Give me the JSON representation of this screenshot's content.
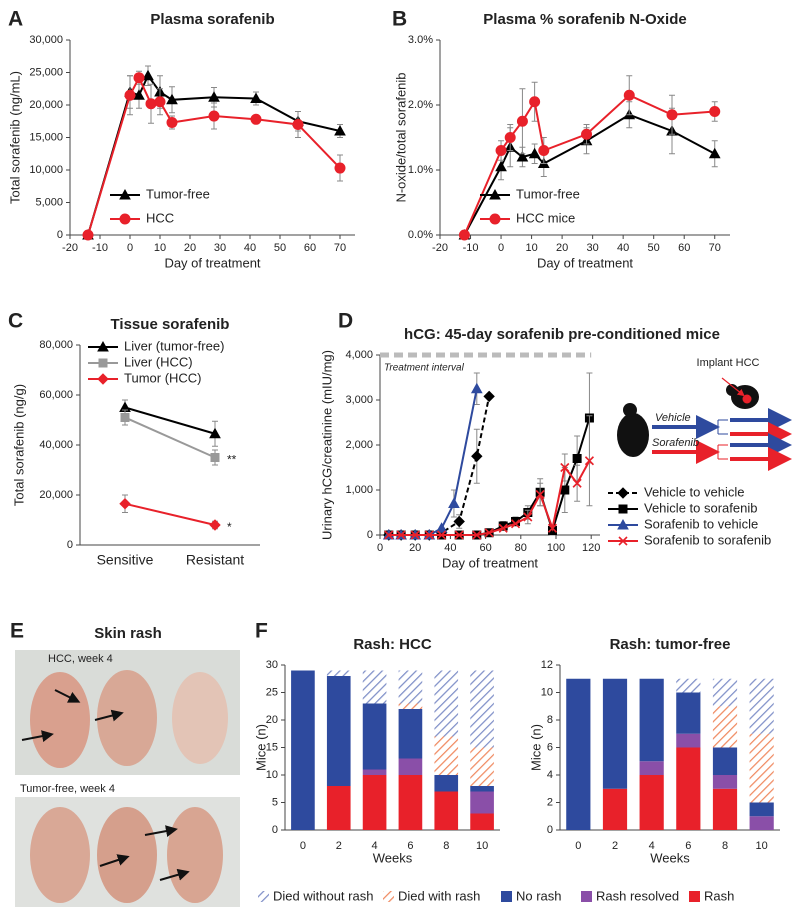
{
  "chart_data": [
    {
      "type": "line",
      "panel": "A",
      "title": "Plasma sorafenib",
      "x_label": "Day of treatment",
      "y_label": "Total sorafenib (ng/mL)",
      "xlim": [
        -20,
        75
      ],
      "xticks": [
        -20,
        -10,
        0,
        10,
        20,
        30,
        40,
        50,
        60,
        70
      ],
      "ylim": [
        0,
        30000
      ],
      "yticks": [
        0,
        {
          "value": 5000,
          "label": "5,000"
        },
        {
          "value": 10000,
          "label": "10,000"
        },
        {
          "value": 15000,
          "label": "15,000"
        },
        {
          "value": 20000,
          "label": "20,000"
        },
        {
          "value": 25000,
          "label": "25,000"
        },
        {
          "value": 30000,
          "label": "30,000"
        }
      ],
      "legend": "lower left",
      "series": [
        {
          "name": "Tumor-free",
          "color": "#000000",
          "marker": "triangle",
          "x": [
            -14,
            0,
            3,
            6,
            10,
            14,
            28,
            42,
            56,
            70
          ],
          "values": [
            0,
            22000,
            21500,
            24500,
            22000,
            20800,
            21200,
            21000,
            17500,
            16000
          ],
          "errors": [
            null,
            2500,
            2000,
            1500,
            2500,
            2000,
            1500,
            1000,
            1500,
            1000
          ]
        },
        {
          "name": "HCC",
          "color": "#e8212a",
          "marker": "circle",
          "x": [
            -14,
            0,
            3,
            7,
            10,
            14,
            28,
            42,
            56,
            70
          ],
          "values": [
            0,
            21500,
            24200,
            20200,
            20500,
            17300,
            18300,
            17800,
            17000,
            10300
          ],
          "errors": [
            null,
            3000,
            1000,
            3000,
            2000,
            1000,
            2000,
            500,
            2000,
            2000
          ]
        }
      ]
    },
    {
      "type": "line",
      "panel": "B",
      "title": "Plasma % sorafenib N-Oxide",
      "x_label": "Day of treatment",
      "y_label": "N-oxide/total sorafenib",
      "xlim": [
        -20,
        75
      ],
      "xticks": [
        -20,
        -10,
        0,
        10,
        20,
        30,
        40,
        50,
        60,
        70
      ],
      "ylim": [
        0,
        3
      ],
      "yticks": [
        {
          "value": 0,
          "label": "0.0%"
        },
        {
          "value": 1,
          "label": "1.0%"
        },
        {
          "value": 2,
          "label": "2.0%"
        },
        {
          "value": 3,
          "label": "3.0%"
        }
      ],
      "legend": "lower left",
      "series": [
        {
          "name": "Tumor-free",
          "color": "#000000",
          "marker": "triangle",
          "x": [
            -12,
            0,
            3,
            7,
            11,
            14,
            28,
            42,
            56,
            70
          ],
          "values": [
            0,
            1.05,
            1.35,
            1.2,
            1.25,
            1.1,
            1.45,
            1.85,
            1.6,
            1.25
          ],
          "errors": [
            null,
            0.2,
            0.3,
            0.15,
            0.15,
            0.2,
            0.2,
            0.2,
            0.35,
            0.2
          ]
        },
        {
          "name": "HCC mice",
          "color": "#e8212a",
          "marker": "circle",
          "x": [
            -12,
            0,
            3,
            7,
            11,
            14,
            28,
            42,
            56,
            70
          ],
          "values": [
            0,
            1.3,
            1.5,
            1.75,
            2.05,
            1.3,
            1.55,
            2.15,
            1.85,
            1.9
          ],
          "errors": [
            null,
            0.15,
            0.2,
            0.5,
            0.3,
            0.2,
            0.15,
            0.3,
            0.3,
            0.15
          ]
        }
      ]
    },
    {
      "type": "line",
      "panel": "C",
      "title": "Tissue sorafenib",
      "y_label": "Total sorafenib (ng/g)",
      "categories": [
        "Sensitive",
        "Resistant"
      ],
      "ylim": [
        0,
        80000
      ],
      "yticks": [
        0,
        {
          "value": 20000,
          "label": "20,000"
        },
        {
          "value": 40000,
          "label": "40,000"
        },
        {
          "value": 60000,
          "label": "60,000"
        },
        {
          "value": 80000,
          "label": "80,000"
        }
      ],
      "legend": "upper left",
      "series": [
        {
          "name": "Liver (tumor-free)",
          "color": "#000000",
          "marker": "triangle",
          "values": [
            55000,
            44500
          ],
          "errors": [
            3000,
            5000
          ]
        },
        {
          "name": "Liver (HCC)",
          "color": "#999999",
          "marker": "square",
          "values": [
            51000,
            35000
          ],
          "errors": [
            3000,
            3000
          ],
          "annotation": "**"
        },
        {
          "name": "Tumor (HCC)",
          "color": "#e8212a",
          "marker": "diamond",
          "values": [
            16500,
            8000
          ],
          "errors": [
            3500,
            1500
          ],
          "annotation": "*"
        }
      ]
    },
    {
      "type": "line",
      "panel": "D",
      "title": "hCG: 45-day sorafenib pre-conditioned mice",
      "x_label": "Day of treatment",
      "y_label": "Urinary hCG/creatinine (mIU/mg)",
      "xlim": [
        0,
        125
      ],
      "xticks": [
        0,
        20,
        40,
        60,
        80,
        100,
        120
      ],
      "ylim": [
        0,
        4000
      ],
      "yticks": [
        0,
        {
          "value": 1000,
          "label": "1,000"
        },
        {
          "value": 2000,
          "label": "2,000"
        },
        {
          "value": 3000,
          "label": "3,000"
        },
        {
          "value": 4000,
          "label": "4,000"
        }
      ],
      "interval": {
        "label": "Treatment interval",
        "x": [
          0,
          120
        ]
      },
      "diagram": {
        "implant": "Implant HCC",
        "vehicle": "Vehicle",
        "sorafenib": "Sorafenib"
      },
      "legend": "outside lower right",
      "series": [
        {
          "name": "Vehicle to vehicle",
          "color": "#000000",
          "marker": "diamond",
          "dashed": true,
          "x": [
            5,
            12,
            20,
            28,
            35,
            45,
            55,
            62
          ],
          "values": [
            0,
            0,
            0,
            0,
            50,
            300,
            1750,
            3080
          ],
          "errors": [
            null,
            null,
            null,
            null,
            null,
            150,
            600,
            null
          ]
        },
        {
          "name": "Vehicle to sorafenib",
          "color": "#000000",
          "marker": "square",
          "x": [
            5,
            12,
            20,
            28,
            35,
            45,
            55,
            62,
            70,
            77,
            84,
            91,
            98,
            105,
            112,
            119
          ],
          "values": [
            0,
            0,
            0,
            0,
            0,
            0,
            0,
            50,
            200,
            300,
            500,
            950,
            100,
            1000,
            1700,
            2600
          ],
          "errors": [
            null,
            null,
            null,
            null,
            null,
            null,
            null,
            null,
            100,
            100,
            150,
            300,
            100,
            500,
            500,
            1000
          ]
        },
        {
          "name": "Sorafenib to vehicle",
          "color": "#2e4a9e",
          "marker": "triangle",
          "x": [
            5,
            12,
            20,
            28,
            35,
            42,
            55
          ],
          "values": [
            0,
            0,
            0,
            0,
            150,
            700,
            3250
          ],
          "errors": [
            null,
            null,
            null,
            null,
            null,
            300,
            350
          ]
        },
        {
          "name": "Sorafenib to sorafenib",
          "color": "#e8212a",
          "marker": "x",
          "x": [
            5,
            12,
            20,
            28,
            35,
            45,
            55,
            62,
            70,
            77,
            84,
            91,
            98,
            105,
            112,
            119
          ],
          "values": [
            0,
            0,
            0,
            0,
            0,
            0,
            0,
            50,
            150,
            250,
            400,
            900,
            150,
            1500,
            1150,
            1650
          ],
          "errors": [
            null,
            null,
            null,
            null,
            null,
            null,
            null,
            null,
            null,
            null,
            150,
            250,
            null,
            300,
            400,
            1000
          ]
        }
      ]
    },
    {
      "type": "stacked_bar",
      "panel": "F",
      "title": "Rash: HCC",
      "x_label": "Weeks",
      "y_label": "Mice (n)",
      "categories": [
        "0",
        "2",
        "4",
        "6",
        "8",
        "10"
      ],
      "ylim": [
        0,
        30
      ],
      "yticks": [
        0,
        5,
        10,
        15,
        20,
        25,
        30
      ],
      "legend": "bottom",
      "series": [
        {
          "name": "Rash",
          "color": "#e8212a",
          "values": [
            0,
            8,
            10,
            10,
            7,
            3
          ]
        },
        {
          "name": "Rash resolved",
          "color": "#8a4fa8",
          "values": [
            0,
            0,
            1,
            3,
            0,
            4
          ]
        },
        {
          "name": "No rash",
          "color": "#2e4a9e",
          "values": [
            29,
            20,
            12,
            9,
            3,
            1
          ]
        },
        {
          "name": "Died with rash",
          "color": "#f08a60",
          "hatch": true,
          "values": [
            0,
            0,
            0,
            1,
            7,
            7
          ]
        },
        {
          "name": "Died without rash",
          "color": "#8090c8",
          "hatch": true,
          "values": [
            0,
            1,
            6,
            6,
            12,
            14
          ]
        }
      ]
    },
    {
      "type": "stacked_bar",
      "title": "Rash: tumor-free",
      "x_label": "Weeks",
      "y_label": "Mice (n)",
      "categories": [
        "0",
        "2",
        "4",
        "6",
        "8",
        "10"
      ],
      "ylim": [
        0,
        12
      ],
      "yticks": [
        0,
        2,
        4,
        6,
        8,
        10,
        12
      ],
      "series": [
        {
          "color": "#e8212a",
          "values": [
            0,
            3,
            4,
            6,
            3,
            0
          ]
        },
        {
          "color": "#8a4fa8",
          "values": [
            0,
            0,
            1,
            1,
            1,
            1
          ]
        },
        {
          "color": "#2e4a9e",
          "values": [
            11,
            8,
            6,
            3,
            2,
            1
          ]
        },
        {
          "color": "#f08a60",
          "hatch": true,
          "values": [
            0,
            0,
            0,
            0,
            3,
            5
          ]
        },
        {
          "color": "#8090c8",
          "hatch": true,
          "values": [
            0,
            0,
            0,
            1,
            2,
            4
          ]
        }
      ]
    }
  ],
  "panel_e": {
    "panel": "E",
    "title": "Skin rash",
    "captions": [
      "HCC, week 4",
      "Tumor-free, week 4"
    ]
  }
}
